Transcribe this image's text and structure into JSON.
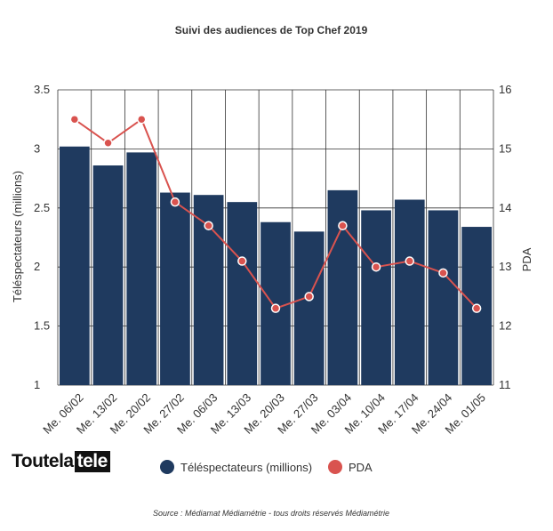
{
  "chart_data": {
    "type": "bar",
    "title": "Suivi des audiences de Top Chef 2019",
    "categories": [
      "Me. 06/02",
      "Me. 13/02",
      "Me. 20/02",
      "Me. 27/02",
      "Me. 06/03",
      "Me. 13/03",
      "Me. 20/03",
      "Me. 27/03",
      "Me. 03/04",
      "Me. 10/04",
      "Me. 17/04",
      "Me. 24/04",
      "Me. 01/05"
    ],
    "ylabel": "Téléspectateurs (millions)",
    "y2label": "PDA",
    "ylim": [
      1,
      3.5
    ],
    "y2lim": [
      11,
      16
    ],
    "yticks": [
      "1",
      "1.5",
      "2",
      "2.5",
      "3",
      "3.5"
    ],
    "y2ticks": [
      "11",
      "12",
      "13",
      "14",
      "15",
      "16"
    ],
    "grid": true,
    "legend_position": "bottom",
    "series": [
      {
        "name": "Téléspectateurs (millions)",
        "type": "bar",
        "axis": "left",
        "color": "#1f3a5f",
        "values": [
          3.02,
          2.86,
          2.97,
          2.63,
          2.61,
          2.55,
          2.38,
          2.3,
          2.65,
          2.48,
          2.57,
          2.48,
          2.34
        ]
      },
      {
        "name": "PDA",
        "type": "line",
        "axis": "right",
        "color": "#d9534f",
        "values": [
          15.5,
          15.1,
          15.5,
          14.1,
          13.7,
          13.1,
          12.3,
          12.5,
          13.7,
          13.0,
          13.1,
          12.9,
          12.3
        ]
      }
    ]
  },
  "logo": {
    "part1": "Toutela",
    "part2": "tele"
  },
  "source": "Source : Médiamat Médiamétrie - tous droits réservés Médiamétrie"
}
